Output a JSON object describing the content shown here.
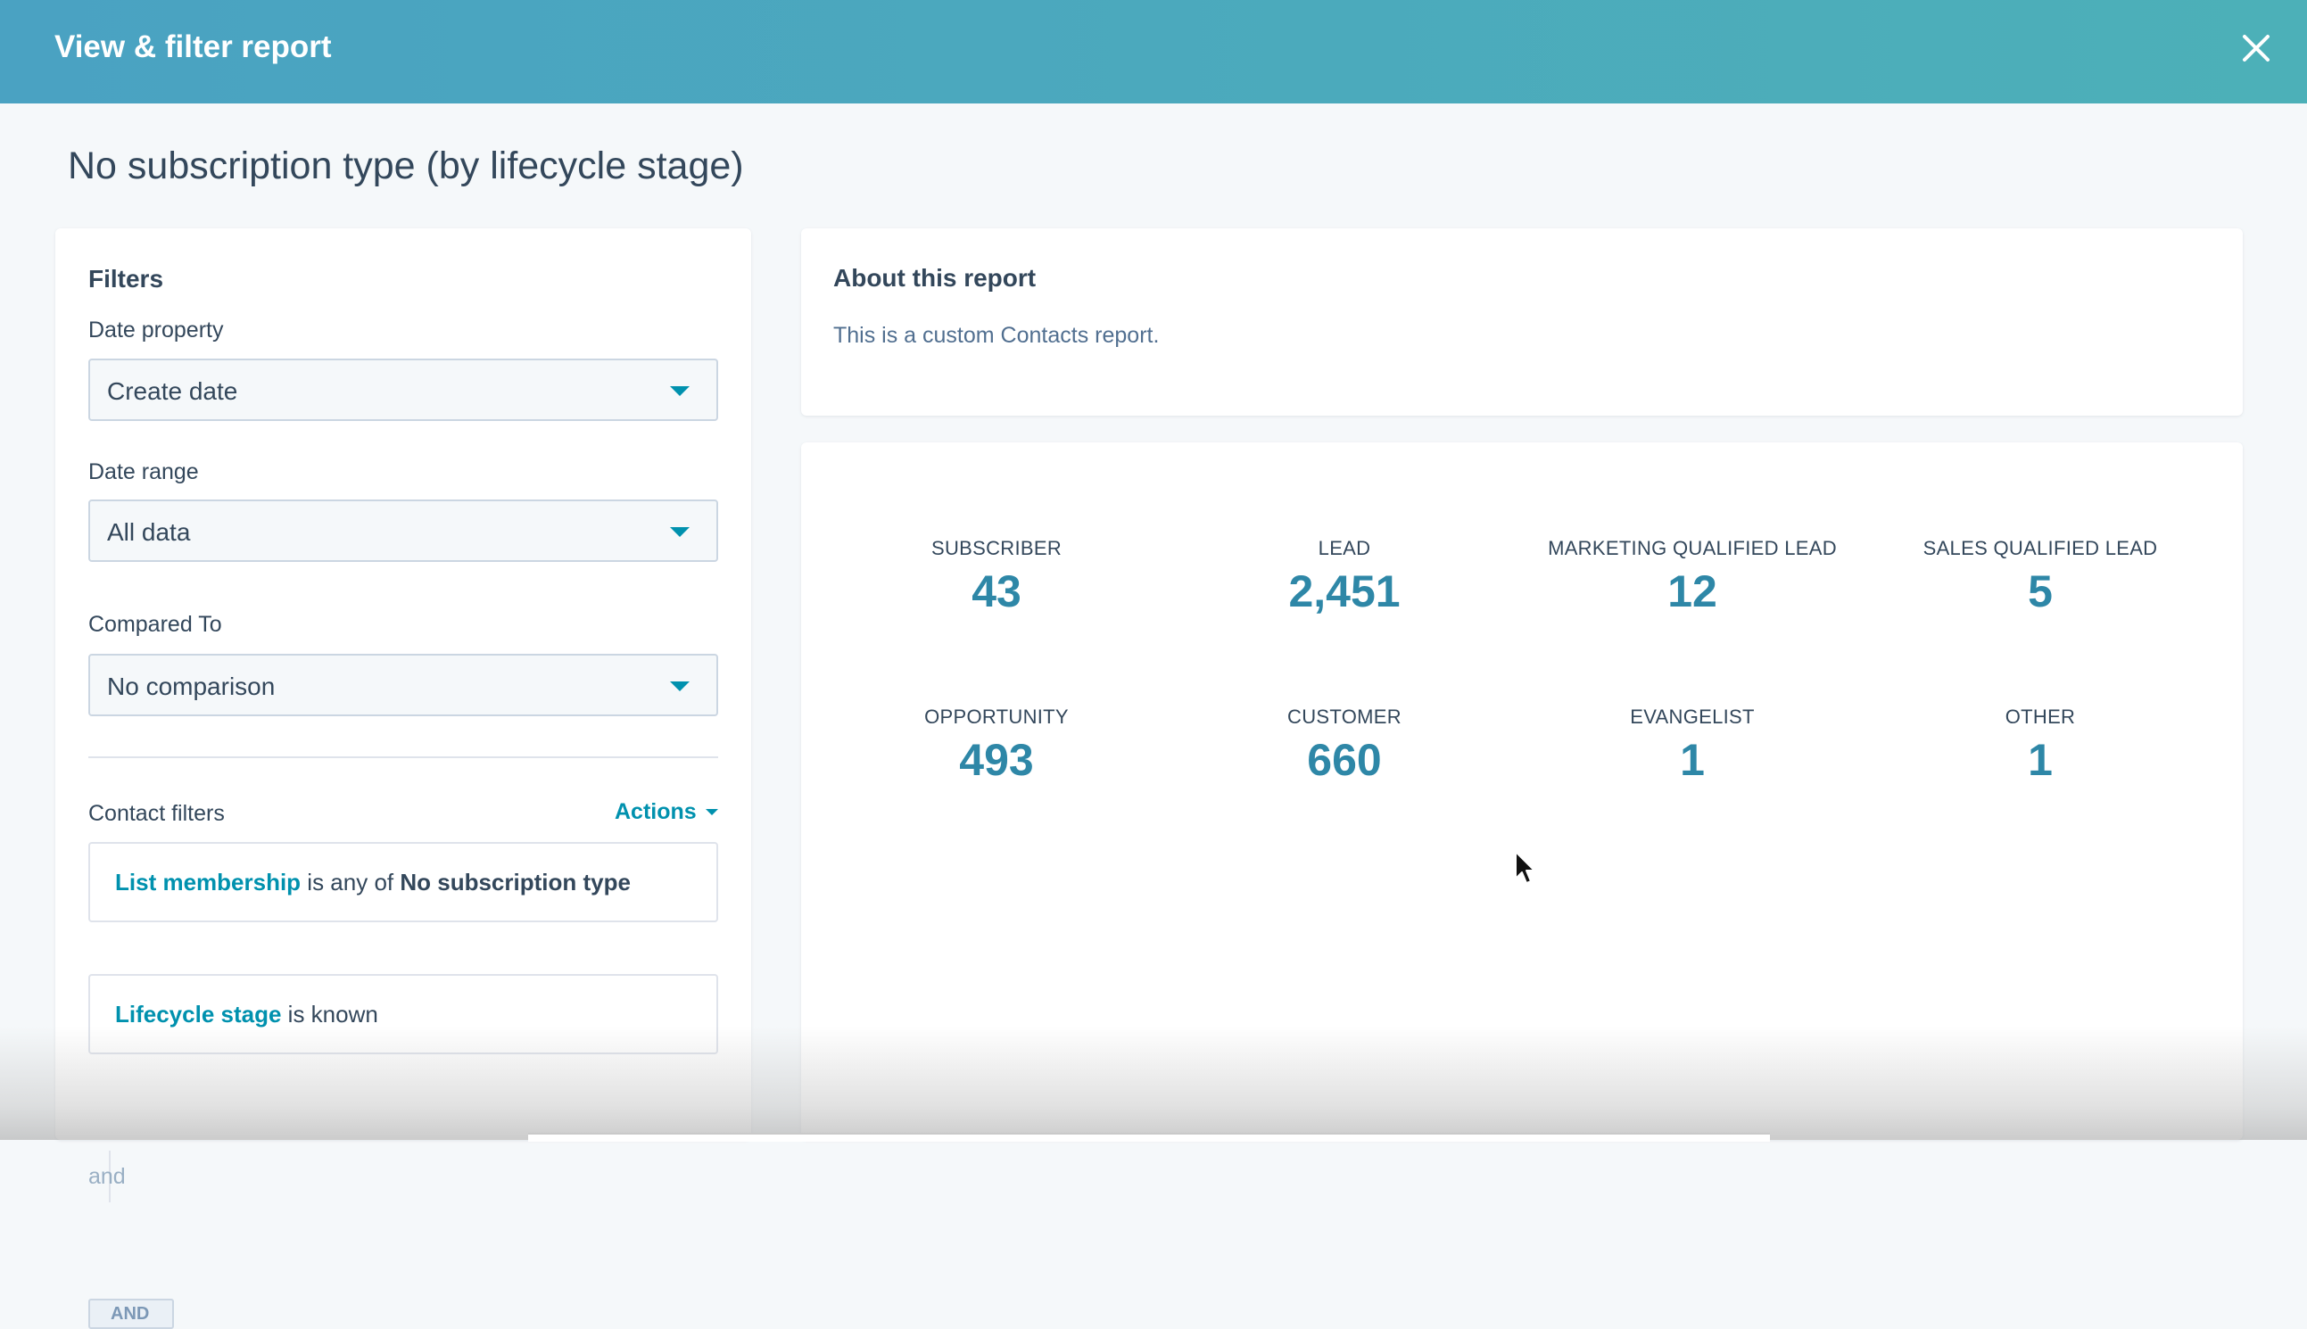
{
  "modal": {
    "title": "View & filter report",
    "close_icon": "close-icon"
  },
  "report": {
    "title": "No subscription type (by lifecycle stage)"
  },
  "filters": {
    "heading": "Filters",
    "date_property": {
      "label": "Date property",
      "value": "Create date"
    },
    "date_range": {
      "label": "Date range",
      "value": "All data"
    },
    "compared_to": {
      "label": "Compared To",
      "value": "No comparison"
    },
    "contact_filters": {
      "label": "Contact filters",
      "actions": "Actions",
      "items": [
        {
          "property": "List membership",
          "operator": "is any of",
          "value": "No subscription type"
        },
        {
          "property": "Lifecycle stage",
          "operator": "is known",
          "value": ""
        }
      ],
      "joiner": "and",
      "and_button": "AND"
    }
  },
  "about": {
    "heading": "About this report",
    "text": "This is a custom Contacts report."
  },
  "metrics": [
    {
      "label": "SUBSCRIBER",
      "value": "43"
    },
    {
      "label": "LEAD",
      "value": "2,451"
    },
    {
      "label": "MARKETING QUALIFIED LEAD",
      "value": "12"
    },
    {
      "label": "SALES QUALIFIED LEAD",
      "value": "5"
    },
    {
      "label": "OPPORTUNITY",
      "value": "493"
    },
    {
      "label": "CUSTOMER",
      "value": "660"
    },
    {
      "label": "EVANGELIST",
      "value": "1"
    },
    {
      "label": "OTHER",
      "value": "1"
    }
  ],
  "colors": {
    "header_start": "#4aa2c2",
    "header_end": "#4cb0b8",
    "accent": "#0091ae",
    "metric_value": "#2e87a7",
    "text": "#33475b"
  }
}
